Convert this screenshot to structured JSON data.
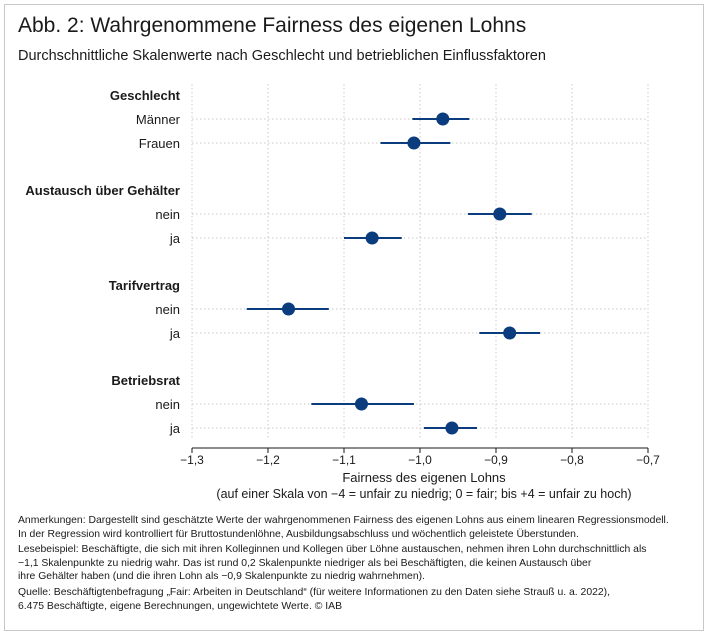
{
  "header": {
    "title": "Abb. 2: Wahrgenommene Fairness des eigenen Lohns",
    "subtitle": "Durchschnittliche Skalenwerte nach Geschlecht und betrieblichen Einflussfaktoren"
  },
  "chart_data": {
    "type": "scatter",
    "subtype": "dot-and-whisker",
    "xlim": [
      -1.3,
      -0.7
    ],
    "x_ticks": [
      "−1,3",
      "−1,2",
      "−1,1",
      "−1,0",
      "−0,9",
      "−0,8",
      "−0,7"
    ],
    "x_tick_values": [
      -1.3,
      -1.2,
      -1.1,
      -1.0,
      -0.9,
      -0.8,
      -0.7
    ],
    "xlabel": "Fairness des eigenen Lohns",
    "xlabel_note": "(auf einer Skala von −4 = unfair zu niedrig; 0 = fair; bis +4 = unfair zu hoch)",
    "grid": true,
    "color": "#0b3c7d",
    "groups": [
      {
        "name": "Geschlecht",
        "items": [
          {
            "label": "Männer",
            "value": -0.97,
            "ci": [
              -1.01,
              -0.935
            ]
          },
          {
            "label": "Frauen",
            "value": -1.008,
            "ci": [
              -1.052,
              -0.96
            ]
          }
        ]
      },
      {
        "name": "Austausch über Gehälter",
        "items": [
          {
            "label": "nein",
            "value": -0.895,
            "ci": [
              -0.937,
              -0.853
            ]
          },
          {
            "label": "ja",
            "value": -1.063,
            "ci": [
              -1.1,
              -1.024
            ]
          }
        ]
      },
      {
        "name": "Tarifvertrag",
        "items": [
          {
            "label": "nein",
            "value": -1.173,
            "ci": [
              -1.228,
              -1.12
            ]
          },
          {
            "label": "ja",
            "value": -0.882,
            "ci": [
              -0.922,
              -0.842
            ]
          }
        ]
      },
      {
        "name": "Betriebsrat",
        "items": [
          {
            "label": "nein",
            "value": -1.077,
            "ci": [
              -1.143,
              -1.008
            ]
          },
          {
            "label": "ja",
            "value": -0.958,
            "ci": [
              -0.995,
              -0.925
            ]
          }
        ]
      }
    ]
  },
  "notes": {
    "anmerkungen": [
      "Anmerkungen: Dargestellt sind geschätzte Werte der wahrgenommenen Fairness des eigenen Lohns aus einem linearen Regressionsmodell.",
      "In der Regression wird kontrolliert für Bruttostundenlöhne, Ausbildungsabschluss und wöchentlich geleistete Überstunden."
    ],
    "lesebeispiel": [
      "Lesebeispiel: Beschäftigte, die sich mit ihren Kolleginnen und Kollegen über Löhne austauschen, nehmen ihren Lohn durchschnittlich als",
      "−1,1 Skalenpunkte zu niedrig wahr. Das ist rund 0,2 Skalenpunkte niedriger als bei Beschäftigten, die keinen Austausch über",
      "ihre Gehälter haben (und die ihren Lohn als −0,9 Skalenpunkte zu niedrig wahrnehmen)."
    ],
    "quelle": [
      "Quelle: Beschäftigtenbefragung „Fair: Arbeiten in Deutschland“ (für weitere Informationen zu den Daten siehe Strauß u. a. 2022),",
      "6.475 Beschäftigte, eigene Berechnungen, ungewichtete Werte.  © IAB"
    ]
  }
}
